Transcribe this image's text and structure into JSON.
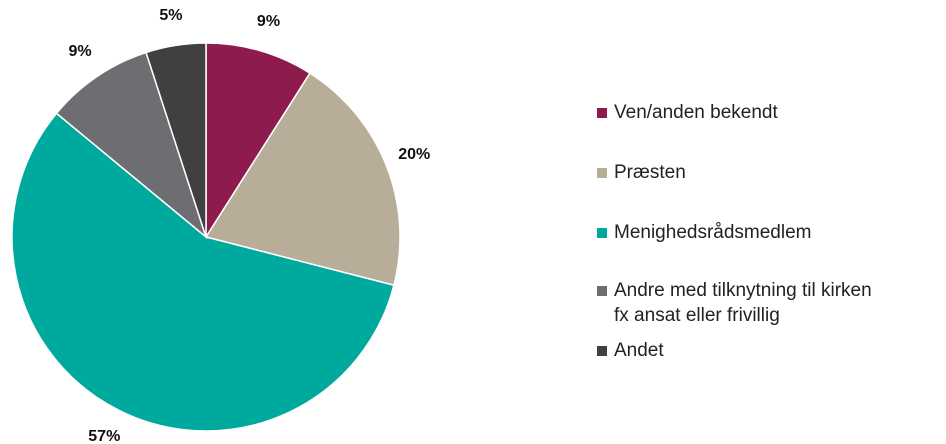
{
  "chart_data": {
    "type": "pie",
    "categories": [
      "Ven/anden bekendt",
      "Præsten",
      "Menighedsrådsmedlem",
      "Andre med tilknytning til kirken\nfx ansat eller frivillig",
      "Andet"
    ],
    "values": [
      9,
      20,
      57,
      9,
      5
    ],
    "value_labels": [
      "9%",
      "20%",
      "57%",
      "9%",
      "5%"
    ],
    "colors": [
      "#8e1b4e",
      "#b8ad98",
      "#00a99d",
      "#6d6e71",
      "#404040"
    ],
    "legend": "right"
  }
}
